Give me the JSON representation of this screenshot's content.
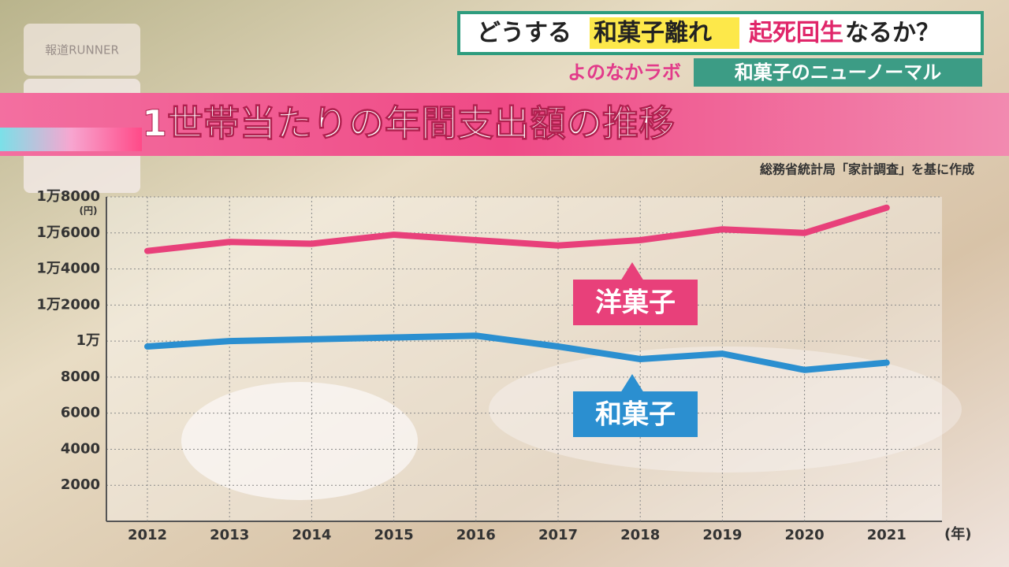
{
  "header": {
    "pre": "どうする",
    "highlight": "和菓子離れ",
    "accent": "起死回生",
    "post": "なるか？",
    "program": "よのなかラボ",
    "segment": "和菓子のニューノーマル",
    "logo": "報道RUNNER"
  },
  "source": "総務省統計局「家計調査」を基に作成",
  "chart_data": {
    "type": "line",
    "title": "1世帯当たりの年間支出額の推移",
    "ylabel": "(円)",
    "xlabel": "(年)",
    "categories": [
      "2012",
      "2013",
      "2014",
      "2015",
      "2016",
      "2017",
      "2018",
      "2019",
      "2020",
      "2021"
    ],
    "series": [
      {
        "name": "洋菓子",
        "color": "#e8407a",
        "values": [
          15000,
          15500,
          15400,
          15900,
          15600,
          15300,
          15600,
          16200,
          16000,
          17400
        ]
      },
      {
        "name": "和菓子",
        "color": "#2b8fd0",
        "values": [
          9700,
          10000,
          10100,
          10200,
          10300,
          9700,
          9000,
          9300,
          8400,
          8800
        ]
      }
    ],
    "ylim": [
      0,
      18000
    ],
    "yticks": [
      2000,
      4000,
      6000,
      8000,
      {
        "value": 10000,
        "label": "1万"
      },
      {
        "value": 12000,
        "label": "1万2000"
      },
      {
        "value": 14000,
        "label": "1万4000"
      },
      {
        "value": 16000,
        "label": "1万6000"
      },
      {
        "value": 18000,
        "label": "1万8000"
      }
    ],
    "grid": true
  }
}
